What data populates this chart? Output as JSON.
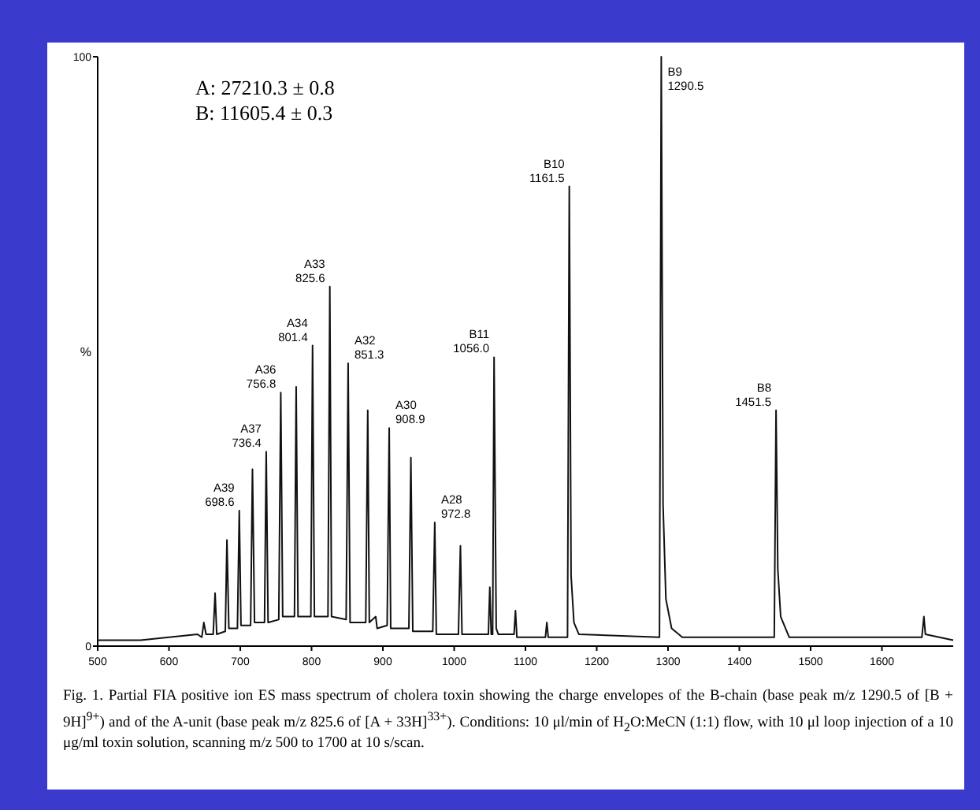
{
  "chart_data": {
    "type": "line",
    "ylabel": "%",
    "xlim": [
      500,
      1700
    ],
    "ylim": [
      0,
      100
    ],
    "xticks": [
      500,
      600,
      700,
      800,
      900,
      1000,
      1100,
      1200,
      1300,
      1400,
      1500,
      1600
    ],
    "yticks": [
      0,
      100
    ],
    "series": [
      {
        "color": "#111111",
        "x": [
          500,
          560,
          600,
          640,
          646,
          648.9,
          652,
          662,
          664.7,
          667,
          679,
          681.3,
          684,
          696,
          698.6,
          701,
          714.5,
          717.1,
          720,
          734,
          736.4,
          739,
          754,
          756.8,
          759.5,
          776,
          778.4,
          781,
          799,
          801.4,
          804,
          823,
          825.6,
          828,
          848.5,
          851.3,
          854,
          876,
          878.8,
          881,
          890,
          892,
          906,
          908.9,
          911,
          936.5,
          939.3,
          942,
          970,
          972.8,
          975,
          1006,
          1008.8,
          1011,
          1048,
          1050,
          1052,
          1054,
          1056,
          1059,
          1062,
          1084,
          1086,
          1088,
          1128,
          1130,
          1132,
          1159,
          1161.5,
          1164,
          1168,
          1175,
          1288,
          1290.5,
          1293,
          1297,
          1305,
          1320,
          1449,
          1451.5,
          1454,
          1458,
          1470,
          1656,
          1658.9,
          1661,
          1700
        ],
        "values": [
          1,
          1,
          1.5,
          2,
          1.5,
          4,
          2,
          2,
          9,
          2,
          2.5,
          18,
          3,
          3,
          23,
          3.5,
          3.5,
          30,
          4,
          4,
          33,
          4,
          4.5,
          43,
          5,
          5,
          44,
          5,
          5,
          51,
          5,
          5,
          61,
          5,
          4.5,
          48,
          4,
          4,
          40,
          4,
          5,
          3,
          3.5,
          37,
          3,
          3,
          32,
          2.5,
          2.5,
          21,
          2,
          2,
          17,
          2,
          2,
          10,
          2,
          2,
          49,
          3,
          2,
          2,
          6,
          1.5,
          1.5,
          4,
          1.5,
          1.5,
          78,
          12,
          4,
          2,
          1.5,
          100,
          24,
          8,
          3,
          1.5,
          1.5,
          40,
          13,
          5,
          1.5,
          1.5,
          5,
          2,
          1
        ]
      }
    ],
    "annotations": [
      "A: 27210.3 ± 0.8",
      "B: 11605.4 ± 0.3",
      {
        "text": "A39\n698.6",
        "x": 698.6,
        "y": 23
      },
      {
        "text": "A37\n736.4",
        "x": 736.4,
        "y": 33
      },
      {
        "text": "A36\n756.8",
        "x": 756.8,
        "y": 43
      },
      {
        "text": "A34\n801.4",
        "x": 801.4,
        "y": 51
      },
      {
        "text": "A33\n825.6",
        "x": 825.6,
        "y": 61
      },
      {
        "text": "A32\n851.3",
        "x": 851.3,
        "y": 48
      },
      {
        "text": "A30\n908.9",
        "x": 908.9,
        "y": 37
      },
      {
        "text": "A28\n972.8",
        "x": 972.8,
        "y": 21
      },
      {
        "text": "B11\n1056.0",
        "x": 1056,
        "y": 49
      },
      {
        "text": "B10\n1161.5",
        "x": 1161.5,
        "y": 78
      },
      {
        "text": "B9\n1290.5",
        "x": 1290.5,
        "y": 100
      },
      {
        "text": "B8\n1451.5",
        "x": 1451.5,
        "y": 40
      },
      "Fig. 1. Partial FIA positive ion ES mass spectrum of cholera toxin showing the charge envelopes of the B-chain (base peak m/z 1290.5 of [B + 9H]$^{9+}$) and of the A-unit (base peak m/z 825.6 of [A + 33H]$^{33+}$). Conditions: 10 μl/min of H$_{2}$O:MeCN (1:1) flow, with 10 μl loop injection of a 10 μg/ml toxin solution, scanning m/z 500 to 1700 at 10 s/scan."
    ]
  }
}
